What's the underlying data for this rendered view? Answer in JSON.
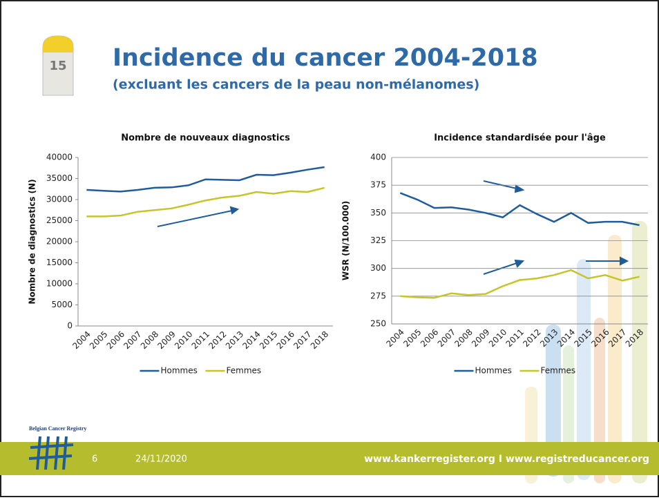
{
  "slide": {
    "title": "Incidence du cancer 2004-2018",
    "subtitle": "(excluant les cancers de la peau non-mélanomes)",
    "milestone": "15",
    "registry": "Belgian Cancer Registry",
    "page": "6",
    "date": "24/11/2020",
    "urls": "www.kankerregister.org I www.registreducancer.org"
  },
  "chart_data": [
    {
      "type": "line",
      "title": "Nombre de nouveaux diagnostics",
      "y_label": "Nombre de diagnostics (N)",
      "categories": [
        "2004",
        "2005",
        "2006",
        "2007",
        "2008",
        "2009",
        "2010",
        "2011",
        "2012",
        "2013",
        "2014",
        "2015",
        "2016",
        "2017",
        "2018"
      ],
      "series": [
        {
          "name": "Hommes",
          "color": "#1f5c99",
          "values": [
            32300,
            32100,
            31900,
            32300,
            32800,
            32900,
            33400,
            34800,
            34700,
            34600,
            35900,
            35800,
            36400,
            37100,
            37700
          ]
        },
        {
          "name": "Femmes",
          "color": "#c3c52a",
          "values": [
            26000,
            26000,
            26200,
            27100,
            27500,
            27900,
            28800,
            29800,
            30500,
            30900,
            31800,
            31400,
            32000,
            31800,
            32800
          ]
        }
      ],
      "ylim": [
        0,
        40000
      ],
      "yticks": [
        0,
        5000,
        10000,
        15000,
        20000,
        25000,
        30000,
        35000,
        40000
      ],
      "grid": false
    },
    {
      "type": "line",
      "title": "Incidence standardisée pour l'âge",
      "y_label": "WSR (N/100.000)",
      "categories": [
        "2004",
        "2005",
        "2006",
        "2007",
        "2008",
        "2009",
        "2010",
        "2011",
        "2012",
        "2013",
        "2014",
        "2015",
        "2016",
        "2017",
        "2018"
      ],
      "series": [
        {
          "name": "Hommes",
          "color": "#1f5c99",
          "values": [
            368,
            362,
            354.5,
            355,
            353,
            350,
            346,
            357,
            349,
            342,
            350,
            341,
            342,
            342,
            339
          ]
        },
        {
          "name": "Femmes",
          "color": "#c3c52a",
          "values": [
            275,
            274,
            273.5,
            277.5,
            276,
            277,
            284,
            289.5,
            291,
            294,
            298.5,
            291,
            294,
            289,
            292.5
          ]
        }
      ],
      "ylim": [
        250,
        400
      ],
      "yticks": [
        250,
        275,
        300,
        325,
        350,
        375,
        400
      ],
      "grid": true
    }
  ]
}
